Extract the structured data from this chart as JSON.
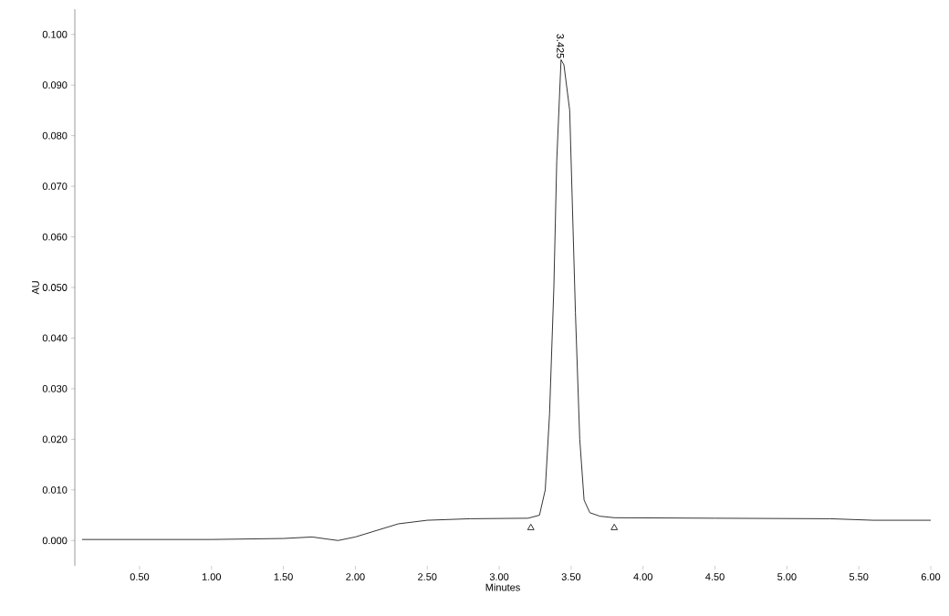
{
  "chart_data": {
    "type": "line",
    "xlabel": "Minutes",
    "ylabel": "AU",
    "xlim": [
      0.05,
      6.0
    ],
    "ylim": [
      -0.005,
      0.105
    ],
    "xticks": [
      {
        "value": 0.5,
        "label": "0.50"
      },
      {
        "value": 1.0,
        "label": "1.00"
      },
      {
        "value": 1.5,
        "label": "1.50"
      },
      {
        "value": 2.0,
        "label": "2.00"
      },
      {
        "value": 2.5,
        "label": "2.50"
      },
      {
        "value": 3.0,
        "label": "3.00"
      },
      {
        "value": 3.5,
        "label": "3.50"
      },
      {
        "value": 4.0,
        "label": "4.00"
      },
      {
        "value": 4.5,
        "label": "4.50"
      },
      {
        "value": 5.0,
        "label": "5.00"
      },
      {
        "value": 5.5,
        "label": "5.50"
      },
      {
        "value": 6.0,
        "label": "6.00"
      }
    ],
    "yticks": [
      {
        "value": 0.0,
        "label": "0.000"
      },
      {
        "value": 0.01,
        "label": "0.010"
      },
      {
        "value": 0.02,
        "label": "0.020"
      },
      {
        "value": 0.03,
        "label": "0.030"
      },
      {
        "value": 0.04,
        "label": "0.040"
      },
      {
        "value": 0.05,
        "label": "0.050"
      },
      {
        "value": 0.06,
        "label": "0.060"
      },
      {
        "value": 0.07,
        "label": "0.070"
      },
      {
        "value": 0.08,
        "label": "0.080"
      },
      {
        "value": 0.09,
        "label": "0.090"
      },
      {
        "value": 0.1,
        "label": "0.100"
      }
    ],
    "annotations": [
      {
        "text": "3.425",
        "x": 3.425,
        "y": 0.095
      }
    ],
    "series": [
      {
        "color": "#000000",
        "x": [
          0.1,
          1.0,
          1.5,
          1.7,
          1.8,
          1.88,
          2.0,
          2.15,
          2.3,
          2.5,
          2.8,
          3.2,
          3.28,
          3.32,
          3.35,
          3.38,
          3.4,
          3.43,
          3.45,
          3.49,
          3.51,
          3.53,
          3.56,
          3.59,
          3.63,
          3.7,
          3.8,
          4.5,
          5.3,
          5.6,
          6.0
        ],
        "values": [
          0.0002,
          0.0002,
          0.0004,
          0.0007,
          0.0003,
          0.0,
          0.0007,
          0.002,
          0.0033,
          0.004,
          0.0043,
          0.0044,
          0.005,
          0.01,
          0.025,
          0.05,
          0.075,
          0.095,
          0.094,
          0.085,
          0.065,
          0.045,
          0.02,
          0.008,
          0.0055,
          0.0048,
          0.0045,
          0.0044,
          0.0043,
          0.004,
          0.004
        ]
      },
      {
        "type": "scatter",
        "marker": "triangle",
        "color": "#000000",
        "x": [
          3.22,
          3.8
        ],
        "values": [
          0.0025,
          0.0025
        ]
      }
    ]
  }
}
